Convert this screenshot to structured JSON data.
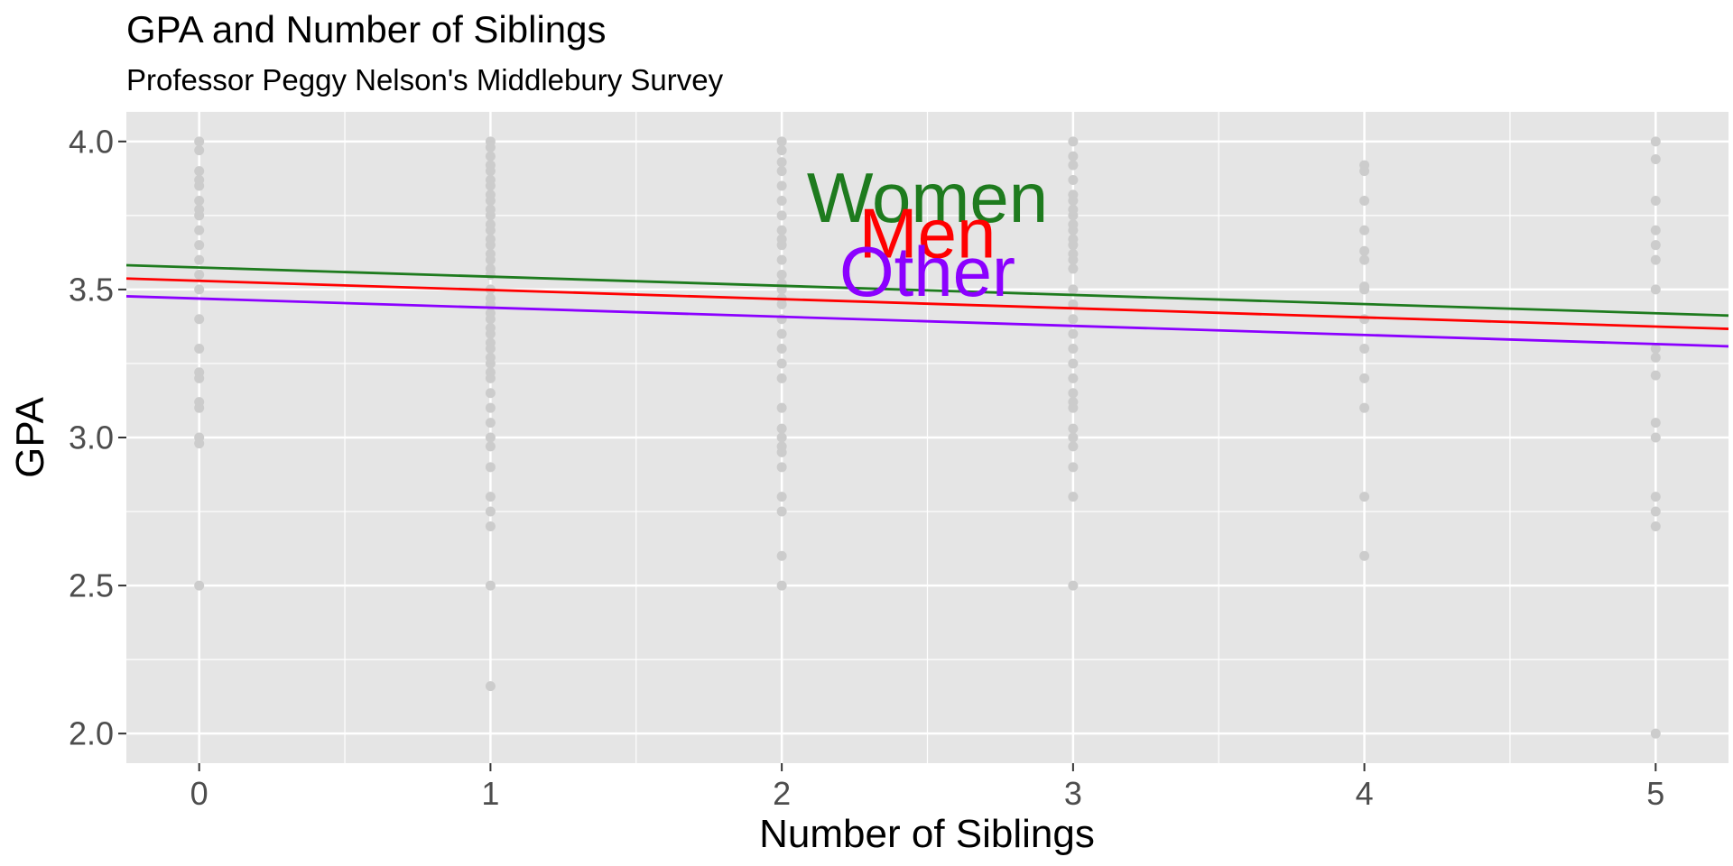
{
  "chart_data": {
    "type": "scatter",
    "title": "GPA and Number of Siblings",
    "subtitle": "Professor Peggy Nelson's Middlebury Survey",
    "xlabel": "Number of Siblings",
    "ylabel": "GPA",
    "xlim": [
      -0.25,
      5.25
    ],
    "ylim": [
      1.9,
      4.1
    ],
    "x_ticks": [
      0,
      1,
      2,
      3,
      4,
      5
    ],
    "x_tick_labels": [
      "0",
      "1",
      "2",
      "3",
      "4",
      "5"
    ],
    "y_ticks": [
      2.0,
      2.5,
      3.0,
      3.5,
      4.0
    ],
    "y_tick_labels": [
      "2.0",
      "2.5",
      "3.0",
      "3.5",
      "4.0"
    ],
    "grid": true,
    "panel_background": "#e5e5e5",
    "grid_color": "#ffffff",
    "point_color": "#cccccc",
    "points": [
      {
        "x": 0,
        "y": 4.0
      },
      {
        "x": 0,
        "y": 3.97
      },
      {
        "x": 0,
        "y": 3.9
      },
      {
        "x": 0,
        "y": 3.87
      },
      {
        "x": 0,
        "y": 3.85
      },
      {
        "x": 0,
        "y": 3.8
      },
      {
        "x": 0,
        "y": 3.77
      },
      {
        "x": 0,
        "y": 3.75
      },
      {
        "x": 0,
        "y": 3.7
      },
      {
        "x": 0,
        "y": 3.65
      },
      {
        "x": 0,
        "y": 3.6
      },
      {
        "x": 0,
        "y": 3.55
      },
      {
        "x": 0,
        "y": 3.5
      },
      {
        "x": 0,
        "y": 3.4
      },
      {
        "x": 0,
        "y": 3.3
      },
      {
        "x": 0,
        "y": 3.22
      },
      {
        "x": 0,
        "y": 3.2
      },
      {
        "x": 0,
        "y": 3.12
      },
      {
        "x": 0,
        "y": 3.1
      },
      {
        "x": 0,
        "y": 3.0
      },
      {
        "x": 0,
        "y": 2.98
      },
      {
        "x": 0,
        "y": 2.5
      },
      {
        "x": 1,
        "y": 4.0
      },
      {
        "x": 1,
        "y": 3.98
      },
      {
        "x": 1,
        "y": 3.95
      },
      {
        "x": 1,
        "y": 3.92
      },
      {
        "x": 1,
        "y": 3.9
      },
      {
        "x": 1,
        "y": 3.87
      },
      {
        "x": 1,
        "y": 3.85
      },
      {
        "x": 1,
        "y": 3.82
      },
      {
        "x": 1,
        "y": 3.8
      },
      {
        "x": 1,
        "y": 3.77
      },
      {
        "x": 1,
        "y": 3.75
      },
      {
        "x": 1,
        "y": 3.72
      },
      {
        "x": 1,
        "y": 3.7
      },
      {
        "x": 1,
        "y": 3.67
      },
      {
        "x": 1,
        "y": 3.65
      },
      {
        "x": 1,
        "y": 3.62
      },
      {
        "x": 1,
        "y": 3.6
      },
      {
        "x": 1,
        "y": 3.57
      },
      {
        "x": 1,
        "y": 3.55
      },
      {
        "x": 1,
        "y": 3.5
      },
      {
        "x": 1,
        "y": 3.47
      },
      {
        "x": 1,
        "y": 3.45
      },
      {
        "x": 1,
        "y": 3.42
      },
      {
        "x": 1,
        "y": 3.4
      },
      {
        "x": 1,
        "y": 3.37
      },
      {
        "x": 1,
        "y": 3.35
      },
      {
        "x": 1,
        "y": 3.32
      },
      {
        "x": 1,
        "y": 3.3
      },
      {
        "x": 1,
        "y": 3.27
      },
      {
        "x": 1,
        "y": 3.25
      },
      {
        "x": 1,
        "y": 3.22
      },
      {
        "x": 1,
        "y": 3.2
      },
      {
        "x": 1,
        "y": 3.15
      },
      {
        "x": 1,
        "y": 3.1
      },
      {
        "x": 1,
        "y": 3.05
      },
      {
        "x": 1,
        "y": 3.0
      },
      {
        "x": 1,
        "y": 2.97
      },
      {
        "x": 1,
        "y": 2.9
      },
      {
        "x": 1,
        "y": 2.8
      },
      {
        "x": 1,
        "y": 2.75
      },
      {
        "x": 1,
        "y": 2.7
      },
      {
        "x": 1,
        "y": 2.5
      },
      {
        "x": 1,
        "y": 2.16
      },
      {
        "x": 2,
        "y": 4.0
      },
      {
        "x": 2,
        "y": 3.97
      },
      {
        "x": 2,
        "y": 3.93
      },
      {
        "x": 2,
        "y": 3.9
      },
      {
        "x": 2,
        "y": 3.85
      },
      {
        "x": 2,
        "y": 3.8
      },
      {
        "x": 2,
        "y": 3.75
      },
      {
        "x": 2,
        "y": 3.7
      },
      {
        "x": 2,
        "y": 3.67
      },
      {
        "x": 2,
        "y": 3.65
      },
      {
        "x": 2,
        "y": 3.6
      },
      {
        "x": 2,
        "y": 3.55
      },
      {
        "x": 2,
        "y": 3.52
      },
      {
        "x": 2,
        "y": 3.5
      },
      {
        "x": 2,
        "y": 3.47
      },
      {
        "x": 2,
        "y": 3.45
      },
      {
        "x": 2,
        "y": 3.4
      },
      {
        "x": 2,
        "y": 3.35
      },
      {
        "x": 2,
        "y": 3.3
      },
      {
        "x": 2,
        "y": 3.25
      },
      {
        "x": 2,
        "y": 3.2
      },
      {
        "x": 2,
        "y": 3.1
      },
      {
        "x": 2,
        "y": 3.03
      },
      {
        "x": 2,
        "y": 3.0
      },
      {
        "x": 2,
        "y": 2.97
      },
      {
        "x": 2,
        "y": 2.95
      },
      {
        "x": 2,
        "y": 2.9
      },
      {
        "x": 2,
        "y": 2.8
      },
      {
        "x": 2,
        "y": 2.75
      },
      {
        "x": 2,
        "y": 2.6
      },
      {
        "x": 2,
        "y": 2.5
      },
      {
        "x": 3,
        "y": 4.0
      },
      {
        "x": 3,
        "y": 3.95
      },
      {
        "x": 3,
        "y": 3.92
      },
      {
        "x": 3,
        "y": 3.87
      },
      {
        "x": 3,
        "y": 3.82
      },
      {
        "x": 3,
        "y": 3.8
      },
      {
        "x": 3,
        "y": 3.77
      },
      {
        "x": 3,
        "y": 3.75
      },
      {
        "x": 3,
        "y": 3.72
      },
      {
        "x": 3,
        "y": 3.7
      },
      {
        "x": 3,
        "y": 3.67
      },
      {
        "x": 3,
        "y": 3.65
      },
      {
        "x": 3,
        "y": 3.62
      },
      {
        "x": 3,
        "y": 3.6
      },
      {
        "x": 3,
        "y": 3.57
      },
      {
        "x": 3,
        "y": 3.5
      },
      {
        "x": 3,
        "y": 3.45
      },
      {
        "x": 3,
        "y": 3.4
      },
      {
        "x": 3,
        "y": 3.35
      },
      {
        "x": 3,
        "y": 3.3
      },
      {
        "x": 3,
        "y": 3.25
      },
      {
        "x": 3,
        "y": 3.2
      },
      {
        "x": 3,
        "y": 3.15
      },
      {
        "x": 3,
        "y": 3.12
      },
      {
        "x": 3,
        "y": 3.1
      },
      {
        "x": 3,
        "y": 3.03
      },
      {
        "x": 3,
        "y": 3.0
      },
      {
        "x": 3,
        "y": 2.97
      },
      {
        "x": 3,
        "y": 2.9
      },
      {
        "x": 3,
        "y": 2.8
      },
      {
        "x": 3,
        "y": 2.5
      },
      {
        "x": 4,
        "y": 3.92
      },
      {
        "x": 4,
        "y": 3.9
      },
      {
        "x": 4,
        "y": 3.8
      },
      {
        "x": 4,
        "y": 3.7
      },
      {
        "x": 4,
        "y": 3.63
      },
      {
        "x": 4,
        "y": 3.6
      },
      {
        "x": 4,
        "y": 3.51
      },
      {
        "x": 4,
        "y": 3.5
      },
      {
        "x": 4,
        "y": 3.4
      },
      {
        "x": 4,
        "y": 3.3
      },
      {
        "x": 4,
        "y": 3.2
      },
      {
        "x": 4,
        "y": 3.1
      },
      {
        "x": 4,
        "y": 2.8
      },
      {
        "x": 4,
        "y": 2.6
      },
      {
        "x": 5,
        "y": 4.0
      },
      {
        "x": 5,
        "y": 3.94
      },
      {
        "x": 5,
        "y": 3.8
      },
      {
        "x": 5,
        "y": 3.7
      },
      {
        "x": 5,
        "y": 3.65
      },
      {
        "x": 5,
        "y": 3.6
      },
      {
        "x": 5,
        "y": 3.5
      },
      {
        "x": 5,
        "y": 3.3
      },
      {
        "x": 5,
        "y": 3.27
      },
      {
        "x": 5,
        "y": 3.21
      },
      {
        "x": 5,
        "y": 3.05
      },
      {
        "x": 5,
        "y": 3.0
      },
      {
        "x": 5,
        "y": 2.8
      },
      {
        "x": 5,
        "y": 2.75
      },
      {
        "x": 5,
        "y": 2.7
      },
      {
        "x": 5,
        "y": 2.0
      }
    ],
    "series": [
      {
        "name": "Women",
        "color": "#1e7b1e",
        "x": [
          -0.25,
          5.25
        ],
        "y": [
          3.582,
          3.412
        ]
      },
      {
        "name": "Men",
        "color": "#ff0000",
        "x": [
          -0.25,
          5.25
        ],
        "y": [
          3.537,
          3.367
        ]
      },
      {
        "name": "Other",
        "color": "#8b00ff",
        "x": [
          -0.25,
          5.25
        ],
        "y": [
          3.477,
          3.308
        ]
      }
    ],
    "annotations": [
      {
        "text": "Women",
        "color": "#1e7b1e",
        "x": 2.5,
        "y": 3.81
      },
      {
        "text": "Men",
        "color": "#ff0000",
        "x": 2.5,
        "y": 3.69
      },
      {
        "text": "Other",
        "color": "#8b00ff",
        "x": 2.5,
        "y": 3.56
      }
    ]
  }
}
